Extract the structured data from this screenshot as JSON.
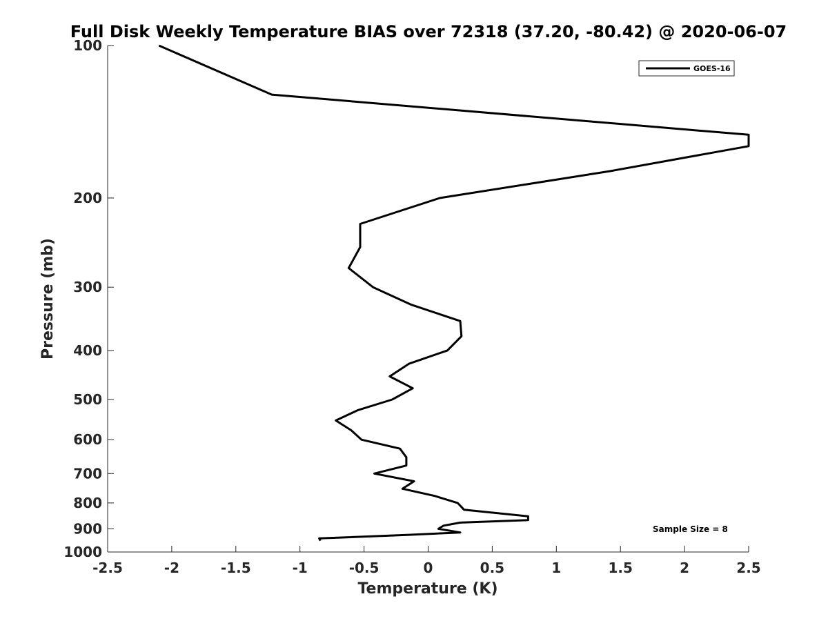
{
  "chart_data": {
    "type": "line",
    "title": "Full Disk Weekly Temperature BIAS over 72318 (37.20, -80.42) @ 2020-06-07",
    "xlabel": "Temperature (K)",
    "ylabel": "Pressure (mb)",
    "xlim": [
      -2.5,
      2.5
    ],
    "ylim": [
      100,
      1000
    ],
    "y_scale": "log",
    "y_direction": "reversed",
    "grid": false,
    "xticks": [
      -2.5,
      -2,
      -1.5,
      -1,
      -0.5,
      0,
      0.5,
      1,
      1.5,
      2,
      2.5
    ],
    "xtick_labels": [
      "-2.5",
      "-2",
      "-1.5",
      "-1",
      "-0.5",
      "0",
      "0.5",
      "1",
      "1.5",
      "2",
      "2.5"
    ],
    "yticks": [
      100,
      200,
      300,
      400,
      500,
      600,
      700,
      800,
      900,
      1000
    ],
    "ytick_labels": [
      "100",
      "200",
      "300",
      "400",
      "500",
      "600",
      "700",
      "800",
      "900",
      "1000"
    ],
    "legend_position": "top-right",
    "series": [
      {
        "name": "GOES-16",
        "color": "#000000",
        "points": [
          [
            -2.1,
            100
          ],
          [
            -1.22,
            125
          ],
          [
            2.5,
            150
          ],
          [
            2.5,
            158
          ],
          [
            1.42,
            177
          ],
          [
            0.09,
            200
          ],
          [
            -0.53,
            225
          ],
          [
            -0.53,
            250
          ],
          [
            -0.62,
            275
          ],
          [
            -0.43,
            300
          ],
          [
            -0.13,
            325
          ],
          [
            0.25,
            350
          ],
          [
            0.26,
            375
          ],
          [
            0.15,
            400
          ],
          [
            -0.15,
            425
          ],
          [
            -0.3,
            450
          ],
          [
            -0.12,
            475
          ],
          [
            -0.28,
            500
          ],
          [
            -0.55,
            525
          ],
          [
            -0.72,
            550
          ],
          [
            -0.6,
            575
          ],
          [
            -0.52,
            600
          ],
          [
            -0.22,
            625
          ],
          [
            -0.17,
            650
          ],
          [
            -0.17,
            675
          ],
          [
            -0.42,
            700
          ],
          [
            -0.11,
            725
          ],
          [
            -0.2,
            750
          ],
          [
            0.05,
            775
          ],
          [
            0.23,
            800
          ],
          [
            0.28,
            825
          ],
          [
            0.78,
            850
          ],
          [
            0.78,
            865
          ],
          [
            0.25,
            875
          ],
          [
            0.12,
            887
          ],
          [
            0.08,
            900
          ],
          [
            0.25,
            915
          ],
          [
            -0.15,
            925
          ],
          [
            -0.85,
            940
          ],
          [
            -0.84,
            950
          ]
        ]
      }
    ],
    "annotation": "Sample Size = 8"
  }
}
